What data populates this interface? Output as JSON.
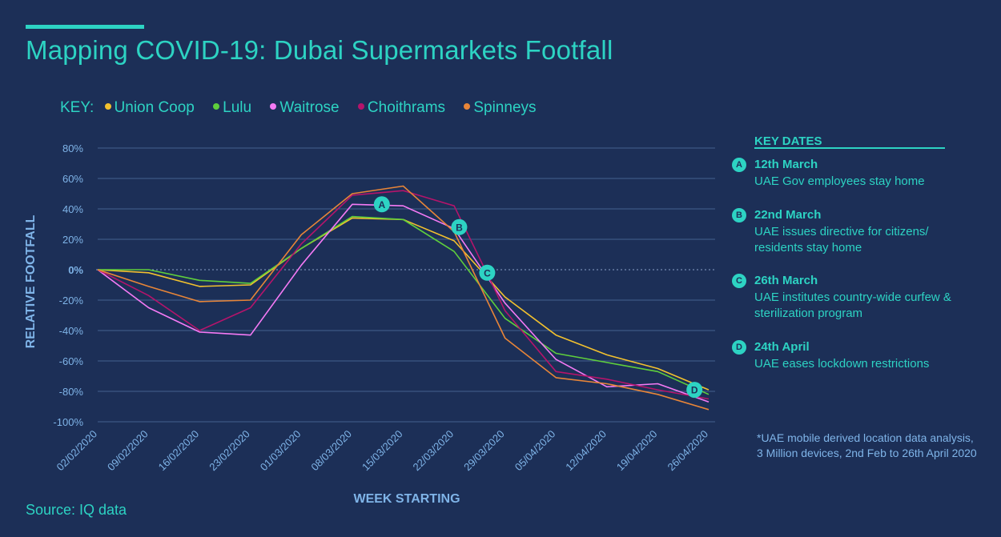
{
  "title": "Mapping COVID-19: Dubai Supermarkets Footfall",
  "key": {
    "label": "KEY:",
    "items": [
      {
        "label": "Union Coop",
        "color": "#f2c12e"
      },
      {
        "label": "Lulu",
        "color": "#5fcf3c"
      },
      {
        "label": "Waitrose",
        "color": "#f57af5"
      },
      {
        "label": "Choithrams",
        "color": "#b5146b"
      },
      {
        "label": "Spinneys",
        "color": "#e88538"
      }
    ]
  },
  "key_dates": {
    "title": "KEY DATES",
    "items": [
      {
        "badge": "A",
        "date": "12th March",
        "description": "UAE Gov employees stay home"
      },
      {
        "badge": "B",
        "date": "22nd  March",
        "description": "UAE issues directive for citizens/ residents stay home"
      },
      {
        "badge": "C",
        "date": "26th  March",
        "description": "UAE institutes country-wide curfew & sterilization program"
      },
      {
        "badge": "D",
        "date": "24th  April",
        "description": "UAE eases lockdown restrictions"
      }
    ]
  },
  "footnote": "*UAE mobile derived location data analysis, 3 Million devices, 2nd Feb to 26th April 2020",
  "source": "Source: IQ data",
  "chart_data": {
    "type": "line",
    "xlabel": "WEEK STARTING",
    "ylabel": "RELATIVE FOOTFALL",
    "ylim": [
      -100,
      80
    ],
    "yticks": [
      "80%",
      "60%",
      "40%",
      "20%",
      "0%",
      "-20%",
      "-40%",
      "-60%",
      "-80%",
      "-100%"
    ],
    "x": [
      "02/02/2020",
      "09/02/2020",
      "16/02/2020",
      "23/02/2020",
      "01/03/2020",
      "08/03/2020",
      "15/03/2020",
      "22/03/2020",
      "29/03/2020",
      "05/04/2020",
      "12/04/2020",
      "19/04/2020",
      "26/04/2020"
    ],
    "series": [
      {
        "name": "Union Coop",
        "color": "#f2c12e",
        "values": [
          0,
          -2,
          -11,
          -10,
          14,
          34,
          33,
          19,
          -18,
          -43,
          -56,
          -65,
          -79
        ]
      },
      {
        "name": "Lulu",
        "color": "#5fcf3c",
        "values": [
          0,
          0,
          -7,
          -9,
          14,
          35,
          33,
          12,
          -32,
          -55,
          -61,
          -67,
          -82
        ]
      },
      {
        "name": "Waitrose",
        "color": "#f57af5",
        "values": [
          0,
          -25,
          -41,
          -43,
          3,
          43,
          42,
          27,
          -22,
          -59,
          -77,
          -75,
          -87
        ]
      },
      {
        "name": "Choithrams",
        "color": "#b5146b",
        "values": [
          0,
          -17,
          -40,
          -25,
          17,
          49,
          52,
          42,
          -27,
          -67,
          -72,
          -79,
          -85
        ]
      },
      {
        "name": "Spinneys",
        "color": "#e88538",
        "values": [
          0,
          -11,
          -21,
          -20,
          23,
          50,
          55,
          25,
          -45,
          -71,
          -75,
          -82,
          -92
        ]
      }
    ],
    "markers": [
      {
        "label": "A",
        "x_index": 5.58,
        "y": 43
      },
      {
        "label": "B",
        "x_index": 7.1,
        "y": 28
      },
      {
        "label": "C",
        "x_index": 7.65,
        "y": -2
      },
      {
        "label": "D",
        "x_index": 11.72,
        "y": -79
      }
    ],
    "grid": true
  }
}
